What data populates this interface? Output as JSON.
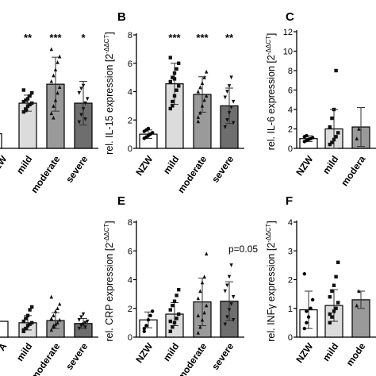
{
  "chart_data": [
    {
      "id": "A",
      "type": "bar",
      "panel_label": "",
      "ylabel": "",
      "ylim": [
        0,
        8
      ],
      "yticks": [],
      "categories": [
        "NZW",
        "mild",
        "moderate",
        "severe"
      ],
      "category_labels": [
        "ZW",
        "mild",
        "moderate",
        "severe"
      ],
      "values": [
        1.0,
        3.1,
        4.4,
        3.1
      ],
      "error": [
        0.2,
        0.55,
        1.85,
        1.5
      ],
      "bar_colors": [
        "#ffffff",
        "#dcdcdc",
        "#9a9a9a",
        "#6e6e6e"
      ],
      "significance": [
        "",
        "**",
        "***",
        "*"
      ],
      "points": [
        [],
        [
          2.5,
          2.7,
          2.9,
          3.0,
          3.1,
          3.2,
          3.3,
          3.4,
          3.6,
          3.8,
          4.0,
          2.6
        ],
        [
          2.4,
          2.9,
          3.3,
          3.8,
          4.2,
          4.6,
          5.0,
          5.4,
          5.9,
          6.3,
          6.8,
          2.1
        ],
        [
          1.8,
          2.3,
          2.7,
          3.1,
          3.4,
          3.8,
          4.1,
          4.3,
          2.0
        ]
      ]
    },
    {
      "id": "B",
      "type": "bar",
      "panel_label": "B",
      "ylabel": "rel. IL-15 expression [2^-ΔΔCT]",
      "ylabel_main": "rel. IL-15 expression [2",
      "ylabel_sup": "-ΔΔCT",
      "ylabel_end": "]",
      "ylim": [
        0,
        8
      ],
      "yticks": [
        "0",
        "2",
        "4",
        "6",
        "8"
      ],
      "categories": [
        "NZW",
        "mild",
        "moderate",
        "severe"
      ],
      "category_labels": [
        "NZW",
        "mild",
        "moderate",
        "severe"
      ],
      "values": [
        1.0,
        4.55,
        3.8,
        3.0
      ],
      "error": [
        0.3,
        1.45,
        1.25,
        1.25
      ],
      "bar_colors": [
        "#ffffff",
        "#dcdcdc",
        "#9a9a9a",
        "#6e6e6e"
      ],
      "significance": [
        "",
        "***",
        "***",
        "**"
      ],
      "points": [
        [
          0.7,
          0.8,
          0.9,
          1.0,
          1.1,
          1.2,
          1.3,
          1.4
        ],
        [
          2.8,
          3.3,
          3.7,
          4.1,
          4.4,
          4.7,
          5.0,
          5.3,
          5.6,
          6.0,
          6.4,
          3.0,
          4.9
        ],
        [
          1.9,
          2.5,
          3.0,
          3.4,
          3.7,
          4.0,
          4.3,
          4.6,
          5.0,
          5.4,
          2.2
        ],
        [
          1.5,
          2.0,
          2.5,
          2.9,
          3.3,
          3.6,
          4.0,
          4.4,
          5.0,
          1.8
        ]
      ]
    },
    {
      "id": "C",
      "type": "bar",
      "panel_label": "C",
      "ylabel": "rel. IL-6 expression [2^-ΔΔCT]",
      "ylabel_main": "rel. IL-6 expression [2",
      "ylabel_sup": "-ΔΔCT",
      "ylabel_end": "]",
      "ylim": [
        0,
        12
      ],
      "yticks": [
        "0",
        "2",
        "4",
        "6",
        "8",
        "10",
        "12"
      ],
      "categories": [
        "NZW",
        "mild",
        "moderate"
      ],
      "category_labels": [
        "NZW",
        "mild",
        "modera"
      ],
      "values": [
        1.0,
        2.0,
        2.2
      ],
      "error": [
        0.3,
        2.0,
        2.0
      ],
      "bar_colors": [
        "#ffffff",
        "#dcdcdc",
        "#9a9a9a"
      ],
      "significance": [
        "",
        "",
        ""
      ],
      "points": [
        [
          0.7,
          0.8,
          0.9,
          1.0,
          1.1,
          1.2,
          1.3
        ],
        [
          0.4,
          0.6,
          0.9,
          1.2,
          1.6,
          2.2,
          3.1,
          4.0,
          8.0
        ],
        [
          1.0,
          2.0
        ]
      ]
    },
    {
      "id": "D",
      "type": "bar",
      "panel_label": "",
      "ylabel": "",
      "ylim": [
        0,
        8
      ],
      "yticks": [],
      "categories": [
        "NZW",
        "mild",
        "moderate",
        "severe"
      ],
      "category_labels": [
        "A",
        "mild",
        "moderate",
        "severe"
      ],
      "values": [
        1.0,
        1.0,
        1.15,
        0.95
      ],
      "error": [
        0.2,
        0.5,
        0.55,
        0.35
      ],
      "bar_colors": [
        "#ffffff",
        "#dcdcdc",
        "#9a9a9a",
        "#6e6e6e"
      ],
      "significance": [
        "",
        "",
        "",
        ""
      ],
      "points": [
        [],
        [
          0.4,
          0.6,
          0.8,
          0.9,
          1.0,
          1.1,
          1.3,
          1.5,
          1.9,
          2.1,
          0.5
        ],
        [
          0.5,
          0.7,
          0.9,
          1.0,
          1.2,
          1.3,
          1.5,
          1.8,
          2.0,
          2.3,
          2.8,
          0.8
        ],
        [
          0.6,
          0.8,
          0.9,
          1.0,
          1.1,
          1.2,
          1.4,
          1.6,
          0.7
        ]
      ]
    },
    {
      "id": "E",
      "type": "bar",
      "panel_label": "E",
      "ylabel": "rel. CRP expression [2^-ΔΔCT]",
      "ylabel_main": "rel. CRP expression [2",
      "ylabel_sup": "-ΔΔCT",
      "ylabel_end": "]",
      "ylim": [
        0,
        8
      ],
      "yticks": [
        "0",
        "2",
        "4",
        "6",
        "8"
      ],
      "categories": [
        "NZW",
        "mild",
        "moderate",
        "severe"
      ],
      "category_labels": [
        "NZW",
        "mild",
        "moderate",
        "severe"
      ],
      "values": [
        1.2,
        1.6,
        2.45,
        2.5
      ],
      "error": [
        0.55,
        0.8,
        1.65,
        1.35
      ],
      "bar_colors": [
        "#ffffff",
        "#dcdcdc",
        "#9a9a9a",
        "#6e6e6e"
      ],
      "significance": [
        "",
        "",
        "",
        ""
      ],
      "annotation": "p=0.05",
      "points": [
        [
          0.4,
          0.8,
          1.2,
          1.5,
          1.8,
          0.6
        ],
        [
          0.4,
          0.7,
          1.0,
          1.3,
          1.6,
          1.9,
          2.2,
          2.5,
          2.9,
          3.3,
          1.1
        ],
        [
          0.3,
          0.7,
          1.2,
          1.7,
          2.2,
          2.7,
          3.2,
          3.8,
          4.2,
          5.8,
          1.5
        ],
        [
          0.9,
          1.4,
          1.9,
          2.3,
          2.8,
          3.2,
          3.6,
          4.2,
          5.0,
          1.2
        ]
      ]
    },
    {
      "id": "F",
      "type": "bar",
      "panel_label": "F",
      "ylabel": "rel. INFγ expression [2^-ΔΔCT]",
      "ylabel_main": "rel. INFγ expression [2",
      "ylabel_sup": "-ΔΔCT",
      "ylabel_end": "]",
      "ylim": [
        0,
        4
      ],
      "yticks": [
        "0",
        "1",
        "2",
        "3",
        "4"
      ],
      "categories": [
        "NZW",
        "mild",
        "moderate"
      ],
      "category_labels": [
        "NZW",
        "mild",
        "mode"
      ],
      "values": [
        0.95,
        1.1,
        1.3
      ],
      "error": [
        0.65,
        0.55,
        0.3
      ],
      "bar_colors": [
        "#ffffff",
        "#dcdcdc",
        "#9a9a9a"
      ],
      "significance": [
        "",
        "",
        ""
      ],
      "points": [
        [
          0.3,
          0.5,
          0.7,
          1.0,
          1.3,
          2.2,
          0.9
        ],
        [
          0.5,
          0.7,
          0.9,
          1.0,
          1.2,
          1.4,
          1.6,
          1.8,
          2.1,
          2.6,
          0.8
        ],
        [
          1.1,
          1.6
        ]
      ]
    }
  ]
}
